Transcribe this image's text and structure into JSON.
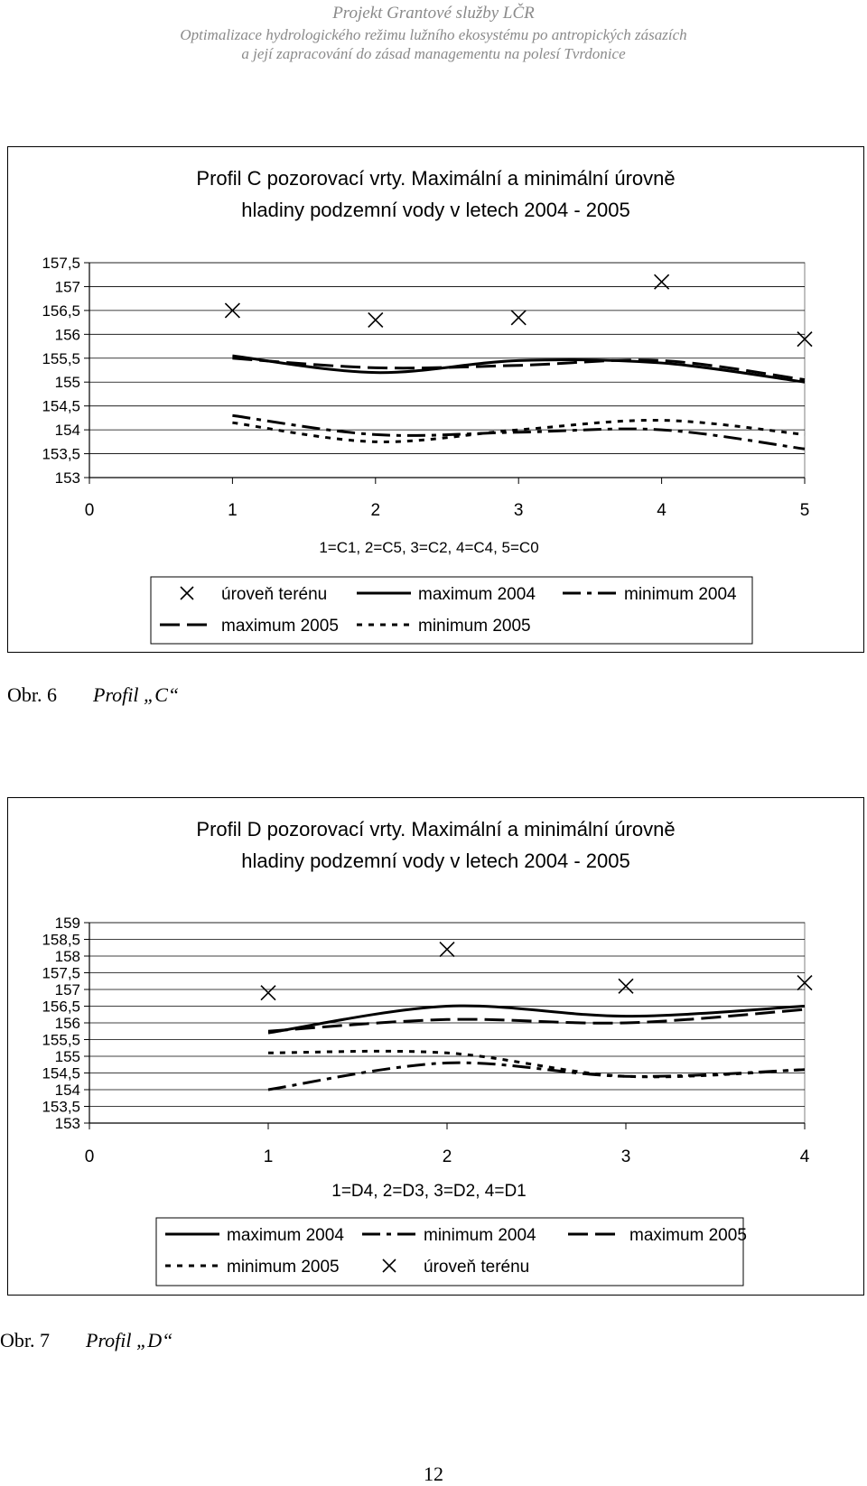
{
  "header": {
    "line1": "Projekt Grantové služby LČR",
    "line2": "Optimalizace hydrologického režimu lužního ekosystému po antropických zásazích",
    "line3": "a její zapracování do zásad managementu na polesí Tvrdonice"
  },
  "figures": [
    {
      "caption_label": "Obr. 6",
      "caption_title": "Profil „C“"
    },
    {
      "caption_label": "Obr. 7",
      "caption_title": "Profil „D“"
    }
  ],
  "page_number": "12",
  "chart_data": [
    {
      "type": "line",
      "title_line1": "Profil C pozorovací vrty. Maximální a minimální úrovně",
      "title_line2": "hladiny podzemní vody v letech 2004 - 2005",
      "xlabel": "1=C1, 2=C5, 3=C2, 4=C4, 5=C0",
      "ylabel": "",
      "xlim": [
        0,
        5
      ],
      "ylim": [
        153,
        157.5
      ],
      "x_ticks": [
        "0",
        "1",
        "2",
        "3",
        "4",
        "5"
      ],
      "y_ticks": [
        "153",
        "153,5",
        "154",
        "154,5",
        "155",
        "155,5",
        "156",
        "156,5",
        "157",
        "157,5"
      ],
      "grid": "horizontal",
      "legend_position": "bottom",
      "x": [
        1,
        2,
        3,
        4,
        5
      ],
      "series": [
        {
          "name": "úroveň terénu",
          "style": "marker-x",
          "values": [
            156.5,
            156.3,
            156.35,
            157.1,
            155.9
          ]
        },
        {
          "name": "maximum 2004",
          "style": "solid",
          "values": [
            155.55,
            155.2,
            155.45,
            155.4,
            155.0
          ]
        },
        {
          "name": "minimum 2004",
          "style": "dashdot",
          "values": [
            154.3,
            153.9,
            153.95,
            154.0,
            153.6
          ]
        },
        {
          "name": "maximum 2005",
          "style": "dash",
          "values": [
            155.5,
            155.3,
            155.35,
            155.45,
            155.05
          ]
        },
        {
          "name": "minimum 2005",
          "style": "dot",
          "values": [
            154.15,
            153.75,
            154.0,
            154.2,
            153.9
          ]
        }
      ],
      "legend_rows": [
        [
          0,
          1,
          2
        ],
        [
          3,
          4
        ]
      ]
    },
    {
      "type": "line",
      "title_line1": "Profil D pozorovací vrty. Maximální a minimální úrovně",
      "title_line2": "hladiny podzemní vody v letech 2004 - 2005",
      "xlabel": "1=D4, 2=D3, 3=D2, 4=D1",
      "ylabel": "",
      "xlim": [
        0,
        4
      ],
      "ylim": [
        153,
        159
      ],
      "x_ticks": [
        "0",
        "1",
        "2",
        "3",
        "4"
      ],
      "y_ticks": [
        "153",
        "153,5",
        "154",
        "154,5",
        "155",
        "155,5",
        "156",
        "156,5",
        "157",
        "157,5",
        "158",
        "158,5",
        "159"
      ],
      "grid": "horizontal",
      "legend_position": "bottom",
      "x": [
        1,
        2,
        3,
        4
      ],
      "series": [
        {
          "name": "maximum 2004",
          "style": "solid",
          "values": [
            155.7,
            156.5,
            156.2,
            156.5
          ]
        },
        {
          "name": "minimum 2004",
          "style": "dashdot",
          "values": [
            154,
            154.8,
            154.4,
            154.6
          ]
        },
        {
          "name": "maximum 2005",
          "style": "dash",
          "values": [
            155.75,
            156.1,
            156.0,
            156.4
          ]
        },
        {
          "name": "minimum 2005",
          "style": "dot",
          "values": [
            155.1,
            155.1,
            154.4,
            154.6
          ]
        },
        {
          "name": "úroveň terénu",
          "style": "marker-x",
          "values": [
            156.9,
            158.2,
            157.1,
            157.2
          ]
        }
      ],
      "legend_rows": [
        [
          0,
          1,
          2
        ],
        [
          3,
          4
        ]
      ]
    }
  ]
}
